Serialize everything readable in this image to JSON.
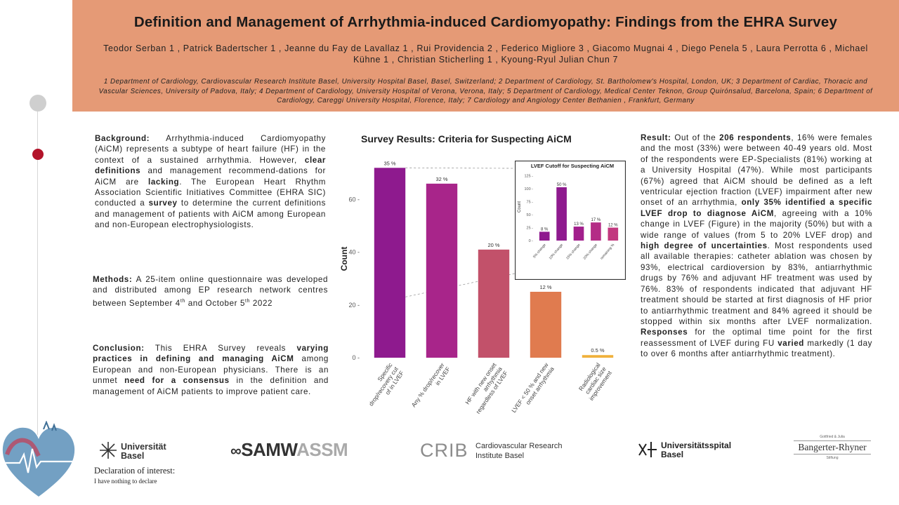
{
  "header": {
    "title": "Definition and Management of Arrhythmia-induced Cardiomyopathy: Findings from the EHRA Survey",
    "authors": "Teodor Serban 1 , Patrick Badertscher 1 , Jeanne du Fay de Lavallaz 1 , Rui Providencia 2 , Federico Migliore 3 , Giacomo Mugnai 4 , Diego Penela 5 , Laura Perrotta 6 , Michael Kühne 1 , Christian Sticherling 1 , Kyoung-Ryul Julian Chun 7",
    "affiliations": "1 Department of Cardiology, Cardiovascular Research Institute Basel, University Hospital Basel, Basel, Switzerland; 2 Department of Cardiology, St. Bartholomew's Hospital, London, UK; 3 Department of Cardiac, Thoracic and Vascular Sciences, University of Padova, Italy; 4 Department of Cardiology, University Hospital of Verona, Verona, Italy; 5 Department of Cardiology, Medical Center Teknon, Group Quirónsalud, Barcelona, Spain; 6 Department of Cardiology, Careggi University Hospital, Florence, Italy; 7 Cardiology and Angiology Center Bethanien , Frankfurt, Germany"
  },
  "background": {
    "label": "Background:",
    "t1": " Arrhythmia-induced Cardiomyopathy (AiCM) represents a subtype of heart failure (HF) in the context of a sustained arrhythmia. However, ",
    "b1": "clear definitions",
    "t2": " and management recommend-dations for AiCM are ",
    "b2": "lacking",
    "t3": ". The European Heart Rhythm Association Scientific Initiatives Committee (EHRA SIC) conducted a ",
    "b3": "survey",
    "t4": " to determine the current definitions and management of patients with AiCM among European and non-European electrophysiologists."
  },
  "methods": {
    "label": "Methods:",
    "t1": " A 25-item online questionnaire was developed and distributed among EP research network centres between September 4",
    "sup1": "th",
    "t2": " and October 5",
    "sup2": "th",
    "t3": " 2022"
  },
  "conclusion": {
    "label": "Conclusion:",
    "t1": " This EHRA Survey reveals ",
    "b1": "varying practices in defining and managing AiCM",
    "t2": " among European and non-European physicians. There is an unmet ",
    "b2": "need for a consensus",
    "t3": " in the definition and management of AiCM patients to improve patient care."
  },
  "result": {
    "label": "Result:",
    "t1": " Out of the ",
    "b1": "206 respondents",
    "t2": ", 16% were females and the most (33%) were between 40-49 years old. Most of the respondents were EP-Specialists (81%) working at a University Hospital (47%). While most participants (67%) agreed that AiCM should be defined as a left ventricular ejection fraction (LVEF) impairment after new onset of an arrhythmia, ",
    "b2": "only 35% identified a specific LVEF drop to diagnose AiCM",
    "t3": ", agreeing with a 10% change in LVEF (Figure) in the majority (50%) but with a wide range of values (from 5 to 20% LVEF drop) and ",
    "b3": "high degree of uncertainties",
    "t4": ". Most respondents used all available therapies: catheter ablation was chosen by 93%, electrical cardioversion by 83%, antiarrhythmic drugs by 76% and adjuvant HF treatment was used by 76%. 83% of respondents indicated that adjuvant HF treatment should be started at first diagnosis of HF prior to antiarrhythmic treatment and 84% agreed it should be stopped within six months after LVEF normalization. ",
    "b4": "Responses",
    "t5": " for the optimal time point for the first reassessment of LVEF during FU ",
    "b5": "varied",
    "t6": " markedly (1 day to over 6 months after antiarrhythmic treatment)."
  },
  "chart_data": [
    {
      "type": "bar",
      "title": "Survey Results: Criteria for Suspecting AiCM",
      "ylabel": "Count",
      "xlabel": "",
      "ylim": [
        0,
        75
      ],
      "yticks": [
        0,
        20,
        40,
        60
      ],
      "categories": [
        "Specific drop/recovery cut of in LVEF",
        "Any % drop/recover in LVEF",
        "HF with new onset arrhythmia regardless of LVEF",
        "LVEF < 50 % and new onset arrhythmia",
        "Radiological cardiac size improvement"
      ],
      "values": [
        72,
        66,
        41,
        25,
        1
      ],
      "labels": [
        "35 %",
        "32 %",
        "20 %",
        "12 %",
        "0.5 %"
      ],
      "colors": [
        "#8e1a8e",
        "#a8258a",
        "#c2516a",
        "#e07b4f",
        "#f0b13c"
      ]
    },
    {
      "type": "bar",
      "title": "LVEF Cutoff for Suspecting AiCM",
      "ylabel": "Count",
      "ylim": [
        0,
        130
      ],
      "yticks": [
        0,
        25,
        50,
        75,
        100,
        125
      ],
      "categories": [
        "5% change",
        "10% change",
        "15% change",
        "20% change",
        "remaining %"
      ],
      "values": [
        17,
        103,
        27,
        35,
        25
      ],
      "labels": [
        "8 %",
        "50 %",
        "13 %",
        "17 %",
        "12 %"
      ],
      "colors": [
        "#8e1a8e",
        "#8e1a8e",
        "#a21f8c",
        "#b42d86",
        "#c2387f"
      ]
    }
  ],
  "footer": {
    "unibas": "Universität Basel",
    "samw_a": "SAMW",
    "samw_b": "ASSM",
    "crib": "CRIB",
    "crib_sub": "Cardiovascular Research Institute Basel",
    "usb": "Universitätsspital Basel",
    "bangerter_top": "Gottfried & Julia",
    "bangerter": "Bangerter-Rhyner",
    "bangerter_bottom": "Stiftung",
    "decl_heading": "Declaration of interest:",
    "decl_text": "I have nothing to declare"
  },
  "colors": {
    "header_bg": "#e59a76",
    "accent_red": "#b3142a"
  },
  "icons": [
    "unibas-logo-icon",
    "usb-logo-icon",
    "heart-ecg-icon"
  ]
}
